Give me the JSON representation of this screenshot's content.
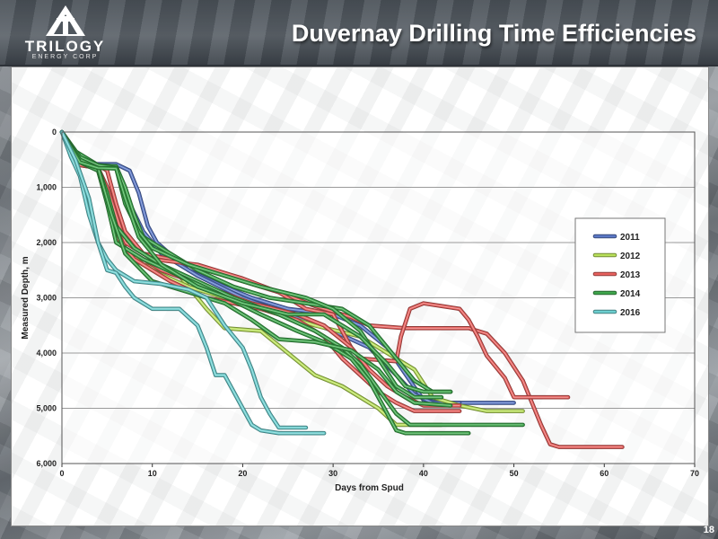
{
  "header": {
    "title": "Duvernay Drilling Time Efficiencies",
    "logo_word": "TRILOGY",
    "logo_sub": "ENERGY CORP"
  },
  "page_number": "18",
  "colors": {
    "2011": "#5b78c6",
    "2012": "#b9e05a",
    "2013": "#e8615e",
    "2014": "#3ea64c",
    "2016": "#6ccfd0"
  },
  "chart_data": {
    "type": "line",
    "xlabel": "Days from Spud",
    "ylabel": "Measured Depth, m",
    "xlim": [
      0,
      70
    ],
    "ylim": [
      0,
      6000
    ],
    "y_inverted": true,
    "grid": true,
    "legend_position": "right",
    "x_ticks": [
      "0",
      "10",
      "20",
      "30",
      "40",
      "50",
      "60",
      "70"
    ],
    "y_ticks": [
      "0",
      "1,000",
      "2,000",
      "3,000",
      "4,000",
      "5,000",
      "6,000"
    ],
    "series": [
      {
        "name": "2011",
        "color": "#5b78c6",
        "points": [
          [
            0,
            0
          ],
          [
            1.5,
            400
          ],
          [
            3,
            580
          ],
          [
            6,
            580
          ],
          [
            7.5,
            700
          ],
          [
            8.5,
            1100
          ],
          [
            9.5,
            1700
          ],
          [
            10.5,
            2000
          ],
          [
            14,
            2500
          ],
          [
            18,
            2800
          ],
          [
            21,
            3000
          ],
          [
            25,
            3200
          ],
          [
            30,
            3300
          ],
          [
            33,
            3500
          ],
          [
            36,
            3900
          ],
          [
            38.5,
            4500
          ],
          [
            40,
            4850
          ],
          [
            42,
            4900
          ],
          [
            50,
            4900
          ]
        ]
      },
      {
        "name": "",
        "color": "#5b78c6",
        "points": [
          [
            0,
            0
          ],
          [
            2,
            550
          ],
          [
            4,
            600
          ],
          [
            6,
            620
          ],
          [
            7.5,
            1300
          ],
          [
            9,
            1800
          ],
          [
            11,
            2200
          ],
          [
            15,
            2600
          ],
          [
            20,
            3000
          ],
          [
            25,
            3300
          ],
          [
            30,
            3600
          ],
          [
            34,
            3900
          ],
          [
            37,
            4400
          ],
          [
            39,
            4750
          ],
          [
            41,
            4900
          ],
          [
            44,
            4900
          ]
        ]
      },
      {
        "name": "2012",
        "color": "#b9e05a",
        "points": [
          [
            0,
            0
          ],
          [
            1.5,
            400
          ],
          [
            4,
            650
          ],
          [
            5,
            1100
          ],
          [
            6,
            1700
          ],
          [
            7,
            2100
          ],
          [
            9,
            2400
          ],
          [
            13,
            2600
          ],
          [
            16,
            3200
          ],
          [
            18,
            3550
          ],
          [
            22,
            3600
          ],
          [
            25,
            4000
          ],
          [
            28,
            4400
          ],
          [
            31,
            4600
          ],
          [
            35,
            5000
          ],
          [
            37,
            5300
          ],
          [
            42,
            5300
          ]
        ]
      },
      {
        "name": "",
        "color": "#b9e05a",
        "points": [
          [
            0,
            0
          ],
          [
            2,
            500
          ],
          [
            4,
            700
          ],
          [
            5.5,
            1500
          ],
          [
            7,
            2200
          ],
          [
            10,
            2500
          ],
          [
            14,
            2800
          ],
          [
            18,
            3000
          ],
          [
            24,
            3300
          ],
          [
            28,
            3500
          ],
          [
            33,
            3700
          ],
          [
            37,
            4100
          ],
          [
            39,
            4300
          ],
          [
            41,
            4800
          ],
          [
            44,
            4950
          ],
          [
            47,
            5050
          ],
          [
            51,
            5050
          ]
        ]
      },
      {
        "name": "2013",
        "color": "#e8615e",
        "points": [
          [
            0,
            0
          ],
          [
            2,
            550
          ],
          [
            4,
            600
          ],
          [
            5,
            700
          ],
          [
            6,
            1300
          ],
          [
            7,
            1800
          ],
          [
            9,
            2200
          ],
          [
            12,
            2300
          ],
          [
            16,
            2500
          ],
          [
            20,
            2700
          ],
          [
            24,
            2900
          ],
          [
            28,
            3150
          ],
          [
            32,
            3350
          ],
          [
            34,
            3500
          ],
          [
            38,
            3550
          ],
          [
            45,
            3550
          ],
          [
            47,
            3650
          ],
          [
            49,
            4000
          ],
          [
            51,
            4500
          ],
          [
            53,
            5300
          ],
          [
            54,
            5650
          ],
          [
            55,
            5700
          ],
          [
            62,
            5700
          ]
        ]
      },
      {
        "name": "",
        "color": "#e8615e",
        "points": [
          [
            0,
            0
          ],
          [
            2,
            600
          ],
          [
            4,
            650
          ],
          [
            5,
            1000
          ],
          [
            6,
            1500
          ],
          [
            7,
            2000
          ],
          [
            10,
            2300
          ],
          [
            15,
            2400
          ],
          [
            20,
            2650
          ],
          [
            24,
            2900
          ],
          [
            27,
            3200
          ],
          [
            30,
            3300
          ],
          [
            32,
            3900
          ],
          [
            33,
            4100
          ],
          [
            37,
            4150
          ],
          [
            37.5,
            3700
          ],
          [
            38.5,
            3200
          ],
          [
            40,
            3100
          ],
          [
            42,
            3150
          ],
          [
            44,
            3200
          ],
          [
            45,
            3400
          ],
          [
            46,
            3700
          ],
          [
            47,
            4050
          ],
          [
            49,
            4450
          ],
          [
            50,
            4800
          ],
          [
            56,
            4800
          ]
        ]
      },
      {
        "name": "",
        "color": "#e8615e",
        "points": [
          [
            0,
            0
          ],
          [
            2,
            550
          ],
          [
            4,
            650
          ],
          [
            5,
            1200
          ],
          [
            6,
            1900
          ],
          [
            8,
            2300
          ],
          [
            12,
            2700
          ],
          [
            16,
            3000
          ],
          [
            22,
            3200
          ],
          [
            26,
            3400
          ],
          [
            29,
            3700
          ],
          [
            31,
            4100
          ],
          [
            33,
            4400
          ],
          [
            35,
            4700
          ],
          [
            37,
            4900
          ],
          [
            39,
            5050
          ],
          [
            44,
            5050
          ]
        ]
      },
      {
        "name": "",
        "color": "#e8615e",
        "points": [
          [
            0,
            0
          ],
          [
            2,
            600
          ],
          [
            4,
            650
          ],
          [
            5.5,
            1600
          ],
          [
            7,
            2100
          ],
          [
            11,
            2500
          ],
          [
            16,
            2800
          ],
          [
            21,
            3100
          ],
          [
            26,
            3300
          ],
          [
            29,
            3500
          ],
          [
            32,
            3900
          ],
          [
            34,
            4300
          ],
          [
            36,
            4600
          ],
          [
            38,
            4800
          ],
          [
            40,
            4950
          ],
          [
            44,
            4950
          ]
        ]
      },
      {
        "name": "2014",
        "color": "#3ea64c",
        "points": [
          [
            0,
            0
          ],
          [
            1.5,
            350
          ],
          [
            4,
            600
          ],
          [
            6,
            620
          ],
          [
            7,
            1000
          ],
          [
            8,
            1500
          ],
          [
            9,
            1900
          ],
          [
            12,
            2200
          ],
          [
            15,
            2500
          ],
          [
            19,
            2800
          ],
          [
            23,
            3000
          ],
          [
            27,
            3100
          ],
          [
            31,
            3200
          ],
          [
            34,
            3500
          ],
          [
            37,
            4100
          ],
          [
            39,
            4500
          ],
          [
            41,
            4700
          ],
          [
            43,
            4700
          ]
        ]
      },
      {
        "name": "",
        "color": "#3ea64c",
        "points": [
          [
            0,
            0
          ],
          [
            2,
            500
          ],
          [
            4,
            650
          ],
          [
            5,
            1100
          ],
          [
            6,
            1700
          ],
          [
            8,
            2100
          ],
          [
            11,
            2400
          ],
          [
            15,
            2700
          ],
          [
            19,
            3000
          ],
          [
            24,
            3300
          ],
          [
            28,
            3600
          ],
          [
            31,
            3900
          ],
          [
            33,
            4200
          ],
          [
            35,
            4650
          ],
          [
            37,
            5100
          ],
          [
            38.5,
            5300
          ],
          [
            40,
            5300
          ],
          [
            51,
            5300
          ]
        ]
      },
      {
        "name": "",
        "color": "#3ea64c",
        "points": [
          [
            0,
            0
          ],
          [
            2,
            450
          ],
          [
            4,
            600
          ],
          [
            6,
            650
          ],
          [
            7,
            1300
          ],
          [
            8.5,
            1800
          ],
          [
            10,
            2100
          ],
          [
            14,
            2400
          ],
          [
            18,
            2600
          ],
          [
            22,
            2800
          ],
          [
            27,
            3000
          ],
          [
            30,
            3200
          ],
          [
            33,
            3600
          ],
          [
            35,
            4100
          ],
          [
            37,
            4600
          ],
          [
            39,
            4800
          ],
          [
            42,
            4800
          ]
        ]
      },
      {
        "name": "",
        "color": "#3ea64c",
        "points": [
          [
            0,
            0
          ],
          [
            2,
            550
          ],
          [
            4,
            700
          ],
          [
            5,
            1300
          ],
          [
            6,
            2000
          ],
          [
            9,
            2300
          ],
          [
            13,
            2600
          ],
          [
            17,
            2900
          ],
          [
            22,
            3300
          ],
          [
            26,
            3600
          ],
          [
            29,
            3800
          ],
          [
            32,
            4100
          ],
          [
            34,
            4500
          ],
          [
            36,
            5100
          ],
          [
            37,
            5400
          ],
          [
            38,
            5450
          ],
          [
            45,
            5450
          ]
        ]
      },
      {
        "name": "",
        "color": "#3ea64c",
        "points": [
          [
            0,
            0
          ],
          [
            2,
            500
          ],
          [
            4,
            650
          ],
          [
            5.5,
            1500
          ],
          [
            7,
            2200
          ],
          [
            10,
            2700
          ],
          [
            14,
            2900
          ],
          [
            18,
            3100
          ],
          [
            21,
            3400
          ],
          [
            24,
            3750
          ],
          [
            28,
            3800
          ],
          [
            32,
            3950
          ],
          [
            35,
            4300
          ],
          [
            37,
            4700
          ],
          [
            39,
            4900
          ],
          [
            43,
            4950
          ]
        ]
      },
      {
        "name": "",
        "color": "#3ea64c",
        "points": [
          [
            0,
            0
          ],
          [
            2,
            550
          ],
          [
            4,
            650
          ],
          [
            6,
            660
          ],
          [
            7,
            1200
          ],
          [
            8.5,
            1900
          ],
          [
            11,
            2400
          ],
          [
            15,
            2800
          ],
          [
            20,
            3100
          ],
          [
            25,
            3300
          ],
          [
            29,
            3300
          ],
          [
            33,
            3700
          ],
          [
            36,
            4200
          ],
          [
            38,
            4600
          ],
          [
            40,
            4700
          ],
          [
            43,
            4700
          ]
        ]
      },
      {
        "name": "2016",
        "color": "#6ccfd0",
        "points": [
          [
            0,
            0
          ],
          [
            1,
            450
          ],
          [
            2,
            800
          ],
          [
            3,
            1500
          ],
          [
            4,
            2000
          ],
          [
            5,
            2300
          ],
          [
            6,
            2500
          ],
          [
            8,
            2700
          ],
          [
            11,
            2750
          ],
          [
            14,
            2850
          ],
          [
            16,
            3000
          ],
          [
            18,
            3500
          ],
          [
            20,
            3900
          ],
          [
            21,
            4300
          ],
          [
            22,
            4800
          ],
          [
            23,
            5100
          ],
          [
            24,
            5350
          ],
          [
            27,
            5350
          ]
        ]
      },
      {
        "name": "",
        "color": "#6ccfd0",
        "points": [
          [
            0,
            0
          ],
          [
            1.5,
            500
          ],
          [
            3,
            1200
          ],
          [
            4,
            2000
          ],
          [
            5,
            2500
          ],
          [
            6,
            2550
          ],
          [
            7,
            2800
          ],
          [
            8,
            3000
          ],
          [
            10,
            3200
          ],
          [
            13,
            3200
          ],
          [
            15,
            3500
          ],
          [
            16,
            3900
          ],
          [
            17,
            4400
          ],
          [
            18,
            4400
          ],
          [
            19,
            4700
          ],
          [
            20,
            5000
          ],
          [
            21,
            5300
          ],
          [
            22,
            5400
          ],
          [
            24,
            5450
          ],
          [
            29,
            5450
          ]
        ]
      }
    ]
  }
}
